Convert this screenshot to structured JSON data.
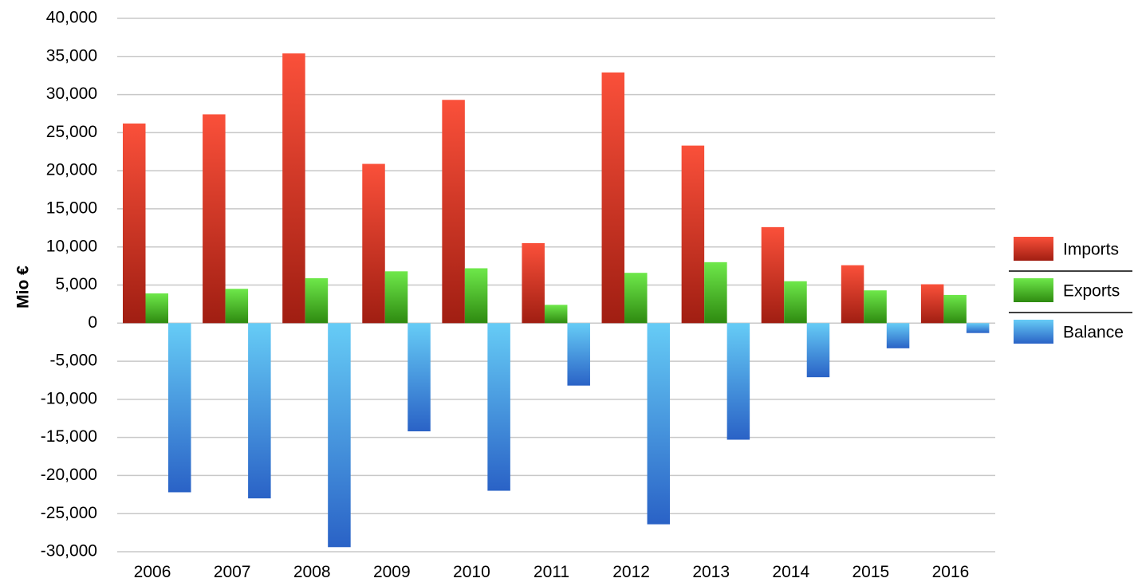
{
  "chart_data": {
    "type": "bar",
    "title": "",
    "xlabel": "",
    "ylabel": "Mio €",
    "ylim": [
      -30000,
      40000
    ],
    "yticks": [
      "40,000",
      "35,000",
      "30,000",
      "25,000",
      "20,000",
      "15,000",
      "10,000",
      "5,000",
      "0",
      "-5,000",
      "-10,000",
      "-15,000",
      "-20,000",
      "-25,000",
      "-30,000"
    ],
    "ytick_values": [
      40000,
      35000,
      30000,
      25000,
      20000,
      15000,
      10000,
      5000,
      0,
      -5000,
      -10000,
      -15000,
      -20000,
      -25000,
      -30000
    ],
    "grid": true,
    "legend_position": "right",
    "categories": [
      "2006",
      "2007",
      "2008",
      "2009",
      "2010",
      "2011",
      "2012",
      "2013",
      "2014",
      "2015",
      "2016"
    ],
    "series": [
      {
        "name": "Imports",
        "color_top": "#fa503a",
        "color_bottom": "#a01e12",
        "values": [
          26200,
          27400,
          35400,
          20900,
          29300,
          10500,
          32900,
          23300,
          12600,
          7600,
          5100
        ]
      },
      {
        "name": "Exports",
        "color_top": "#6ee84a",
        "color_bottom": "#2e8a10",
        "values": [
          3900,
          4500,
          5900,
          6800,
          7200,
          2400,
          6600,
          8000,
          5500,
          4300,
          3700
        ]
      },
      {
        "name": "Balance",
        "color_top": "#66ccf6",
        "color_bottom": "#2a62c6",
        "values": [
          -22200,
          -23000,
          -29400,
          -14200,
          -22000,
          -8200,
          -26400,
          -15300,
          -7100,
          -3300,
          -1300
        ]
      }
    ]
  }
}
